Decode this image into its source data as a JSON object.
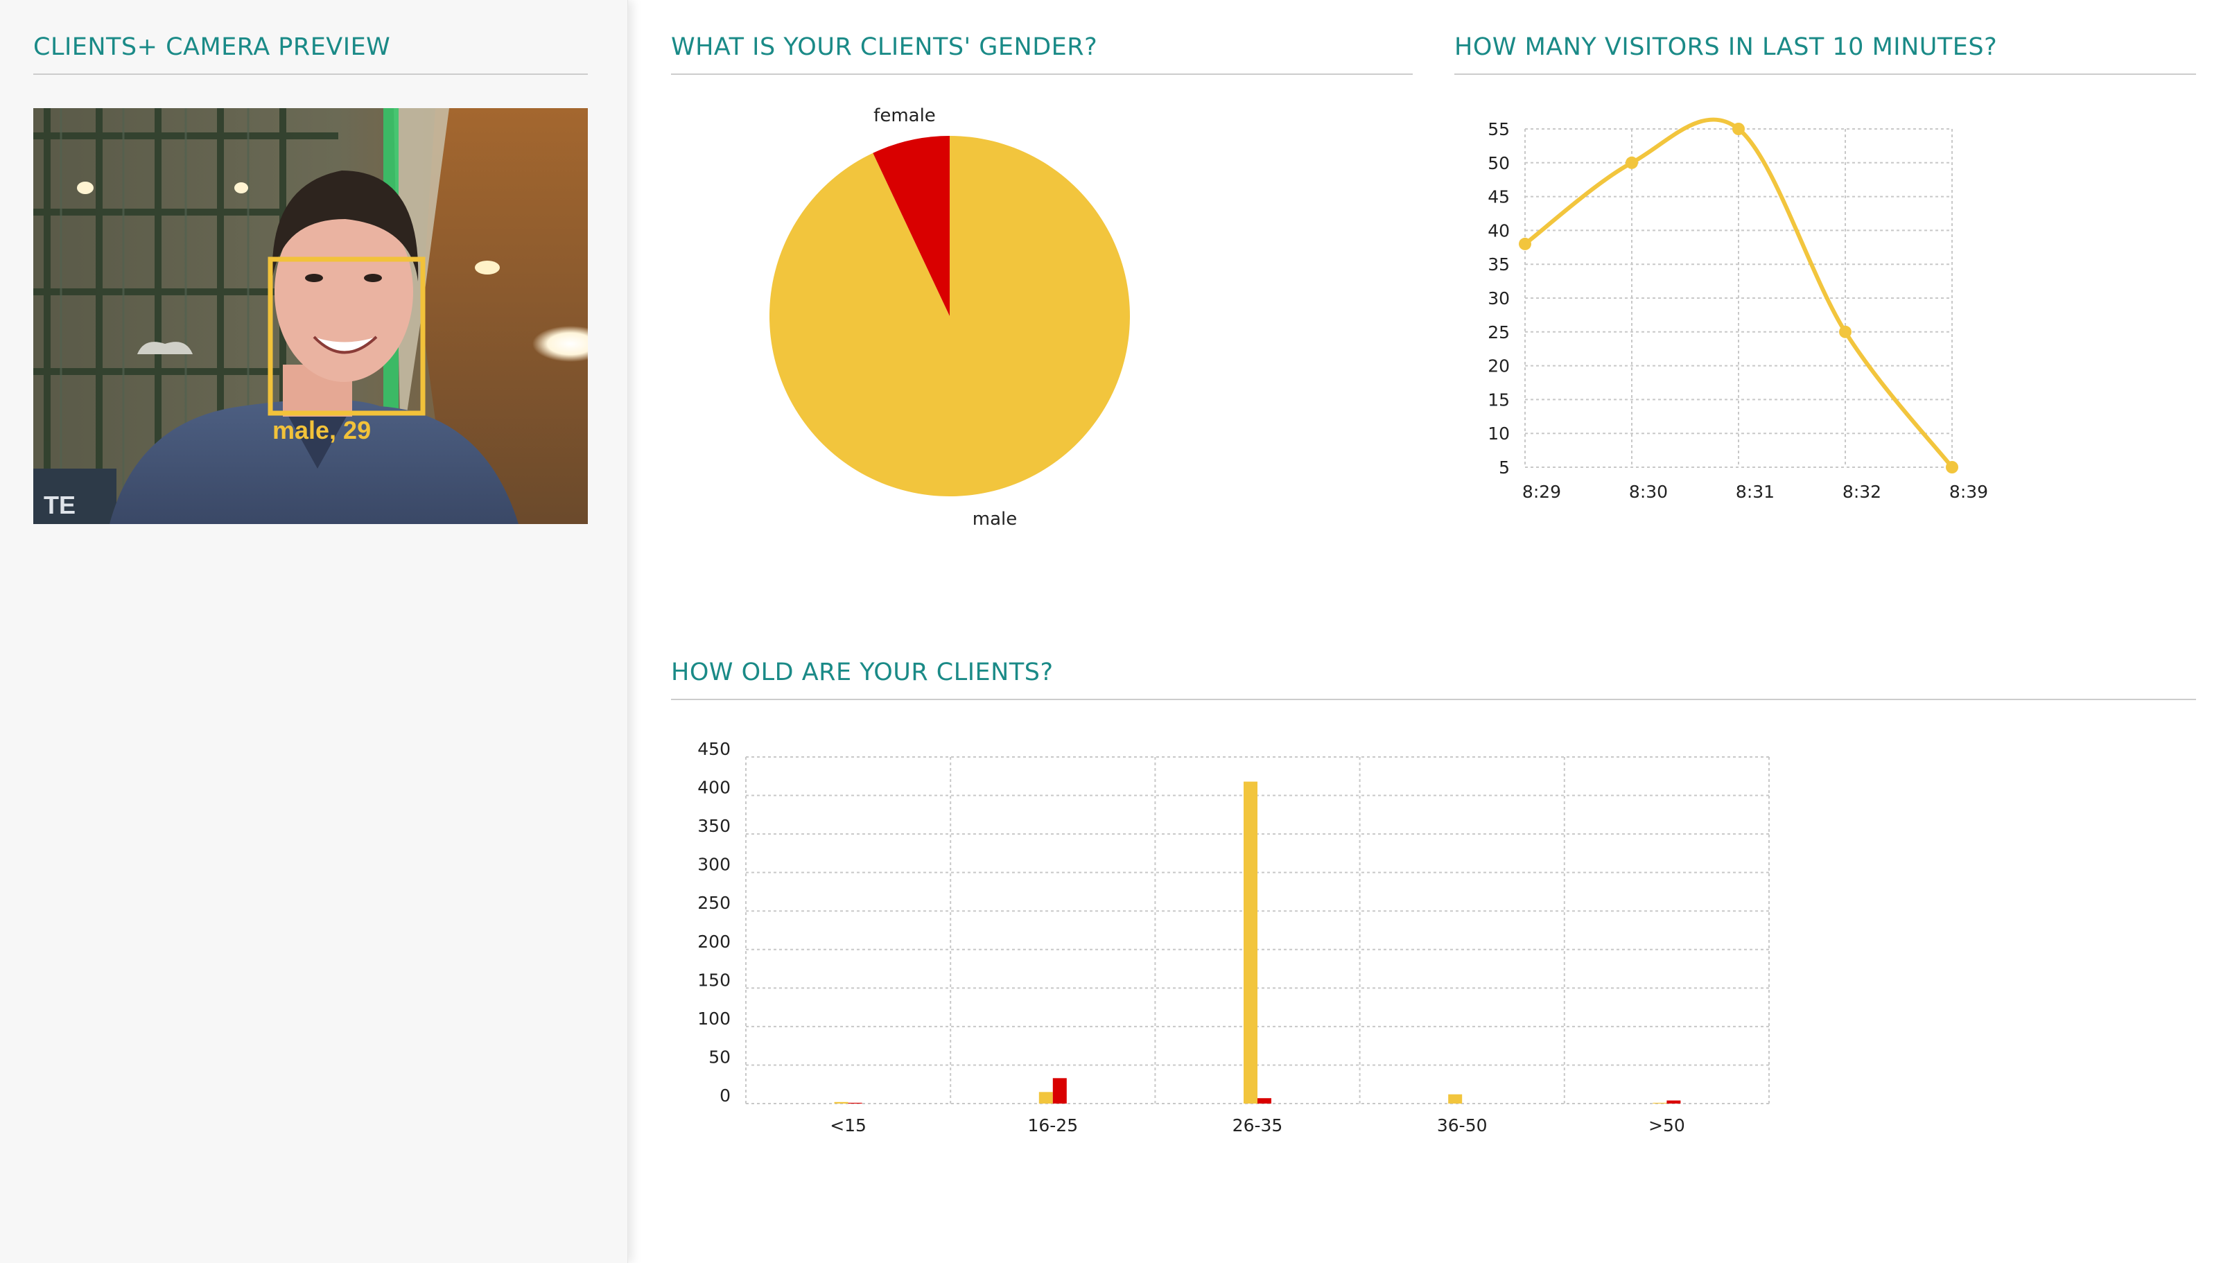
{
  "sidebar": {
    "title": "CLIENTS+ CAMERA PREVIEW",
    "camera": {
      "detection_label": "male, 29",
      "box_color": "#f2c23a",
      "background_sign_fragment": "TE"
    }
  },
  "gender": {
    "title": "WHAT IS YOUR CLIENTS' GENDER?"
  },
  "visitors": {
    "title": "HOW MANY VISITORS IN LAST 10 MINUTES?"
  },
  "age": {
    "title": "HOW OLD ARE YOUR CLIENTS?"
  },
  "colors": {
    "accent": "#1a8a87",
    "yellow": "#f2c53d",
    "red": "#d90000",
    "grid": "#c8c8c8"
  },
  "chart_data": [
    {
      "type": "pie",
      "categories": [
        "male",
        "female"
      ],
      "values": [
        93,
        7
      ],
      "colors": [
        "#f2c53d",
        "#d90000"
      ]
    },
    {
      "type": "line",
      "x": [
        "8:29",
        "8:30",
        "8:31",
        "8:32",
        "8:39"
      ],
      "series": [
        {
          "values": [
            38,
            50,
            55,
            25,
            5
          ]
        }
      ],
      "ylim": [
        5,
        55
      ],
      "yticks": [
        5,
        10,
        15,
        20,
        25,
        30,
        35,
        40,
        45,
        50,
        55
      ],
      "grid": true,
      "color": "#f2c53d"
    },
    {
      "type": "bar",
      "categories": [
        "<15",
        "16-25",
        "26-35",
        "36-50",
        ">50"
      ],
      "series": [
        {
          "values": [
            2,
            15,
            418,
            12,
            1
          ],
          "color": "#f2c53d"
        },
        {
          "values": [
            1,
            33,
            7,
            0,
            4
          ],
          "color": "#d90000"
        }
      ],
      "ylim": [
        0,
        450
      ],
      "yticks": [
        0,
        50,
        100,
        150,
        200,
        250,
        300,
        350,
        400,
        450
      ],
      "grid": true
    }
  ]
}
